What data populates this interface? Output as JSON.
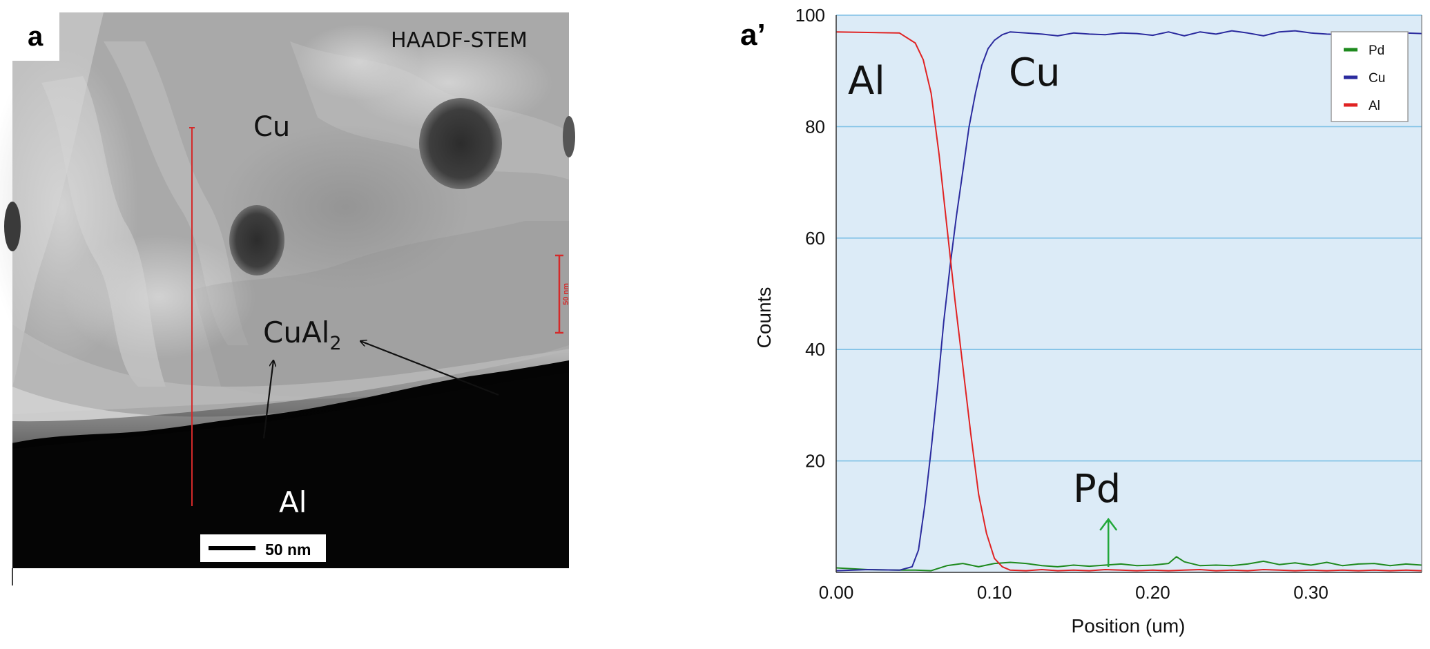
{
  "panel_a": {
    "label": "a",
    "mode": "HAADF-STEM",
    "phases": {
      "cu": "Cu",
      "cual2_base": "CuAl",
      "cual2_sub": "2",
      "al": "Al"
    },
    "linescan_bar": "50 nm",
    "scale_bar": "50 nm",
    "colors": {
      "linescan": "#d42a2a",
      "arrow": "#111111"
    }
  },
  "panel_b": {
    "label": "a’"
  },
  "chart_data": {
    "type": "line",
    "title": "",
    "xlabel": "Position (um)",
    "ylabel": "Counts",
    "xlim": [
      0,
      0.37
    ],
    "ylim": [
      0,
      100
    ],
    "xticks": [
      0.0,
      0.1,
      0.2,
      0.3
    ],
    "xtick_labels": [
      "0.00",
      "0.10",
      "0.20",
      "0.30"
    ],
    "yticks": [
      20,
      40,
      60,
      80,
      100
    ],
    "ytick_labels": [
      "20",
      "40",
      "60",
      "80",
      "100"
    ],
    "grid": "horizontal",
    "legend_position": "top-right",
    "legend": [
      "Pd",
      "Cu",
      "Al"
    ],
    "annotations": {
      "al": "Al",
      "cu": "Cu",
      "pd": "Pd"
    },
    "pd_arrow_x": 0.172,
    "series": [
      {
        "name": "Pd",
        "color": "#1e8a1e",
        "x": [
          0,
          0.02,
          0.04,
          0.05,
          0.06,
          0.07,
          0.08,
          0.09,
          0.1,
          0.11,
          0.12,
          0.13,
          0.14,
          0.15,
          0.16,
          0.17,
          0.18,
          0.19,
          0.2,
          0.21,
          0.215,
          0.22,
          0.23,
          0.24,
          0.25,
          0.26,
          0.27,
          0.28,
          0.29,
          0.3,
          0.31,
          0.32,
          0.33,
          0.34,
          0.35,
          0.36,
          0.37
        ],
        "y": [
          0.8,
          0.5,
          0.4,
          0.4,
          0.3,
          1.2,
          1.6,
          1.0,
          1.6,
          1.8,
          1.6,
          1.2,
          1.0,
          1.3,
          1.1,
          1.3,
          1.5,
          1.2,
          1.3,
          1.6,
          2.8,
          1.9,
          1.2,
          1.3,
          1.2,
          1.5,
          2.0,
          1.4,
          1.7,
          1.3,
          1.8,
          1.2,
          1.5,
          1.6,
          1.2,
          1.5,
          1.3
        ]
      },
      {
        "name": "Cu",
        "color": "#2b2b9e",
        "x": [
          0,
          0.02,
          0.04,
          0.048,
          0.052,
          0.056,
          0.06,
          0.064,
          0.068,
          0.072,
          0.076,
          0.08,
          0.084,
          0.088,
          0.092,
          0.096,
          0.1,
          0.105,
          0.11,
          0.12,
          0.13,
          0.14,
          0.15,
          0.16,
          0.17,
          0.18,
          0.19,
          0.2,
          0.21,
          0.22,
          0.23,
          0.24,
          0.25,
          0.26,
          0.27,
          0.28,
          0.29,
          0.3,
          0.31,
          0.32,
          0.33,
          0.34,
          0.35,
          0.36,
          0.37
        ],
        "y": [
          0.3,
          0.5,
          0.4,
          1.0,
          4.0,
          12.0,
          22.0,
          33.0,
          45.0,
          55.0,
          64.0,
          72.0,
          80.0,
          86.0,
          91.0,
          94.0,
          95.5,
          96.5,
          97.0,
          96.8,
          96.6,
          96.3,
          96.8,
          96.6,
          96.5,
          96.8,
          96.7,
          96.4,
          97.0,
          96.3,
          97.0,
          96.6,
          97.2,
          96.8,
          96.3,
          97.0,
          97.2,
          96.8,
          96.6,
          96.5,
          96.7,
          96.5,
          96.6,
          96.8,
          96.7
        ]
      },
      {
        "name": "Al",
        "color": "#e02222",
        "x": [
          0,
          0.02,
          0.04,
          0.05,
          0.055,
          0.06,
          0.065,
          0.07,
          0.075,
          0.08,
          0.085,
          0.09,
          0.095,
          0.1,
          0.105,
          0.11,
          0.12,
          0.13,
          0.14,
          0.15,
          0.16,
          0.17,
          0.18,
          0.19,
          0.2,
          0.21,
          0.22,
          0.23,
          0.24,
          0.25,
          0.26,
          0.27,
          0.28,
          0.29,
          0.3,
          0.31,
          0.32,
          0.33,
          0.34,
          0.35,
          0.36,
          0.37
        ],
        "y": [
          97.0,
          96.9,
          96.8,
          95.0,
          92.0,
          86.0,
          75.0,
          62.0,
          49.0,
          37.0,
          25.0,
          14.0,
          7.0,
          2.5,
          1.0,
          0.4,
          0.3,
          0.5,
          0.3,
          0.4,
          0.3,
          0.5,
          0.4,
          0.3,
          0.4,
          0.3,
          0.4,
          0.5,
          0.3,
          0.4,
          0.3,
          0.5,
          0.4,
          0.3,
          0.4,
          0.3,
          0.4,
          0.3,
          0.4,
          0.3,
          0.4,
          0.3
        ]
      }
    ]
  }
}
